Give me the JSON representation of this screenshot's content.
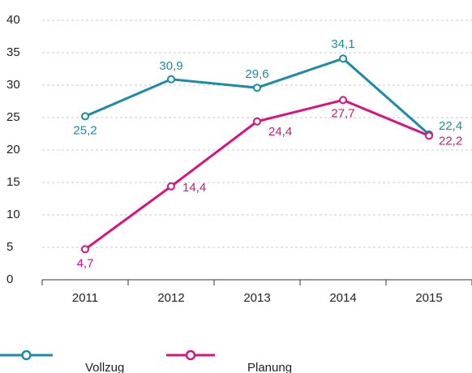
{
  "chart_data": {
    "type": "line",
    "categories": [
      "2011",
      "2012",
      "2013",
      "2014",
      "2015"
    ],
    "series": [
      {
        "name": "Vollzug",
        "color": "#1b8ba6",
        "values": [
          25.2,
          30.9,
          29.6,
          34.1,
          22.4
        ],
        "value_labels": [
          "25,2",
          "30,9",
          "29,6",
          "34,1",
          "22,4"
        ]
      },
      {
        "name": "Planung",
        "color": "#d4147f",
        "values": [
          4.7,
          14.4,
          24.4,
          27.7,
          22.2
        ],
        "value_labels": [
          "4,7",
          "14,4",
          "24,4",
          "27,7",
          "22,2"
        ]
      }
    ],
    "ylim": [
      0,
      40
    ],
    "yticks": [
      0,
      5,
      10,
      15,
      20,
      25,
      30,
      35,
      40
    ],
    "grid": true
  }
}
